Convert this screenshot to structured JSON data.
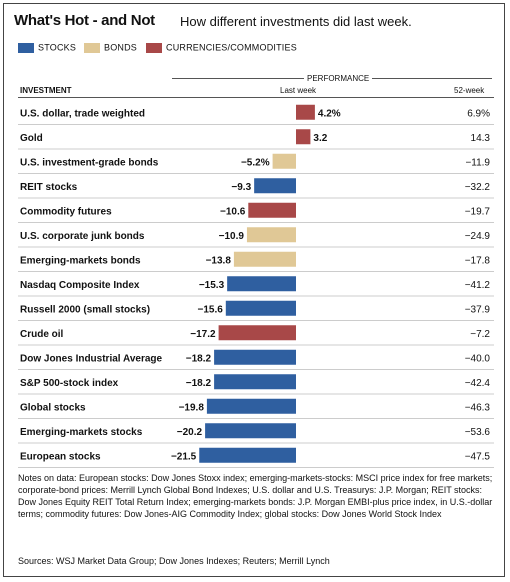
{
  "title": "What's Hot - and Not",
  "subtitle": "How different investments did last week.",
  "colors": {
    "stocks": "#2f5fa0",
    "bonds": "#e0c896",
    "currencies": "#a84848"
  },
  "legend": [
    {
      "key": "stocks",
      "label": "STOCKS"
    },
    {
      "key": "bonds",
      "label": "BONDS"
    },
    {
      "key": "currencies",
      "label": "CURRENCIES/COMMODITIES"
    }
  ],
  "headers": {
    "investment": "INVESTMENT",
    "performance": "PERFORMANCE",
    "last_week": "Last week",
    "week52": "52-week"
  },
  "chart_data": {
    "type": "bar",
    "orientation": "horizontal",
    "xlim": [
      -22,
      4.5
    ],
    "grid": false,
    "categories": [
      "U.S. dollar, trade weighted",
      "Gold",
      "U.S. investment-grade bonds",
      "REIT stocks",
      "Commodity futures",
      "U.S. corporate junk bonds",
      "Emerging-markets bonds",
      "Nasdaq Composite Index",
      "Russell 2000 (small stocks)",
      "Crude oil",
      "Dow Jones Industrial Average",
      "S&P 500-stock index",
      "Global stocks",
      "Emerging-markets stocks",
      "European stocks"
    ],
    "values": [
      4.2,
      3.2,
      -5.2,
      -9.3,
      -10.6,
      -10.9,
      -13.8,
      -15.3,
      -15.6,
      -17.2,
      -18.2,
      -18.2,
      -19.8,
      -20.2,
      -21.5
    ],
    "value_labels": [
      "4.2%",
      "3.2",
      "−5.2%",
      "−9.3",
      "−10.6",
      "−10.9",
      "−13.8",
      "−15.3",
      "−15.6",
      "−17.2",
      "−18.2",
      "−18.2",
      "−19.8",
      "−20.2",
      "−21.5"
    ],
    "groups": [
      "currencies",
      "currencies",
      "bonds",
      "stocks",
      "currencies",
      "bonds",
      "bonds",
      "stocks",
      "stocks",
      "currencies",
      "stocks",
      "stocks",
      "stocks",
      "stocks",
      "stocks"
    ],
    "week52": [
      "6.9%",
      "14.3",
      "−11.9",
      "−32.2",
      "−19.7",
      "−24.9",
      "−17.8",
      "−41.2",
      "−37.9",
      "−7.2",
      "−40.0",
      "−42.4",
      "−46.3",
      "−53.6",
      "−47.5"
    ]
  },
  "notes": "Notes on data: European stocks: Dow Jones Stoxx index; emerging-markets-stocks: MSCI price index for free markets; corporate-bond prices: Merrill Lynch Global Bond Indexes; U.S. dollar and U.S. Treasurys: J.P. Morgan; REIT stocks: Dow Jones Equity REIT Total Return Index; emerging-markets bonds: J.P. Morgan EMBI-plus price index, in U.S.-dollar terms; commodity futures: Dow Jones-AIG Commodity Index; global stocks: Dow Jones World Stock Index",
  "sources": "Sources: WSJ Market Data Group; Dow Jones Indexes; Reuters; Merrill Lynch"
}
